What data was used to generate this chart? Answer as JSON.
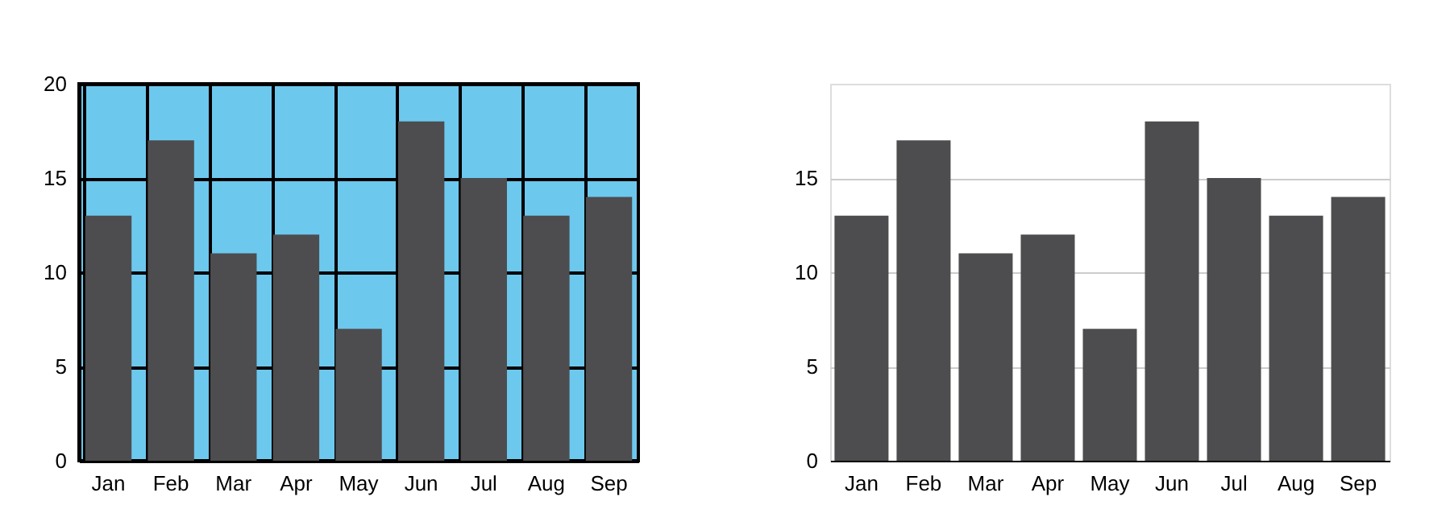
{
  "chart_data": [
    {
      "type": "bar",
      "categories": [
        "Jan",
        "Feb",
        "Mar",
        "Apr",
        "May",
        "Jun",
        "Jul",
        "Aug",
        "Sep"
      ],
      "values": [
        13,
        17,
        11,
        12,
        7,
        18,
        15,
        13,
        14
      ],
      "color": "#4d4d4f",
      "ylim": [
        0,
        20
      ],
      "yticks": [
        0,
        5,
        10,
        15,
        20
      ],
      "grid": true
    },
    {
      "type": "bar",
      "categories": [
        "Jan",
        "Feb",
        "Mar",
        "Apr",
        "May",
        "Jun",
        "Jul",
        "Aug",
        "Sep"
      ],
      "values": [
        13,
        17,
        11,
        12,
        7,
        18,
        15,
        13,
        14
      ],
      "color": "#4d4d4f",
      "ylim": [
        0,
        20
      ],
      "yticks": [
        0,
        5,
        10,
        15
      ],
      "grid": "y"
    }
  ]
}
